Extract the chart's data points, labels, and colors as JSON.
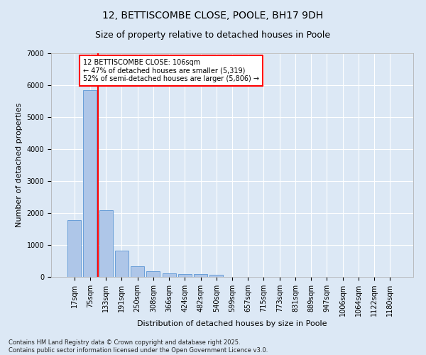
{
  "title1": "12, BETTISCOMBE CLOSE, POOLE, BH17 9DH",
  "title2": "Size of property relative to detached houses in Poole",
  "xlabel": "Distribution of detached houses by size in Poole",
  "ylabel": "Number of detached properties",
  "categories": [
    "17sqm",
    "75sqm",
    "133sqm",
    "191sqm",
    "250sqm",
    "308sqm",
    "366sqm",
    "424sqm",
    "482sqm",
    "540sqm",
    "599sqm",
    "657sqm",
    "715sqm",
    "773sqm",
    "831sqm",
    "889sqm",
    "947sqm",
    "1006sqm",
    "1064sqm",
    "1122sqm",
    "1180sqm"
  ],
  "values": [
    1780,
    5850,
    2080,
    820,
    340,
    185,
    110,
    90,
    90,
    65,
    0,
    0,
    0,
    0,
    0,
    0,
    0,
    0,
    0,
    0,
    0
  ],
  "bar_color": "#aec6e8",
  "bar_edge_color": "#6a9fd8",
  "vline_color": "red",
  "vline_x_idx": 1.5,
  "annotation_text": "12 BETTISCOMBE CLOSE: 106sqm\n← 47% of detached houses are smaller (5,319)\n52% of semi-detached houses are larger (5,806) →",
  "annotation_box_color": "white",
  "annotation_box_edge": "red",
  "ylim": [
    0,
    7000
  ],
  "yticks": [
    0,
    1000,
    2000,
    3000,
    4000,
    5000,
    6000,
    7000
  ],
  "footer1": "Contains HM Land Registry data © Crown copyright and database right 2025.",
  "footer2": "Contains public sector information licensed under the Open Government Licence v3.0.",
  "bg_color": "#dce8f5",
  "grid_color": "white",
  "title1_fontsize": 10,
  "title2_fontsize": 9,
  "xlabel_fontsize": 8,
  "ylabel_fontsize": 8,
  "tick_fontsize": 7,
  "annotation_fontsize": 7,
  "footer_fontsize": 6
}
